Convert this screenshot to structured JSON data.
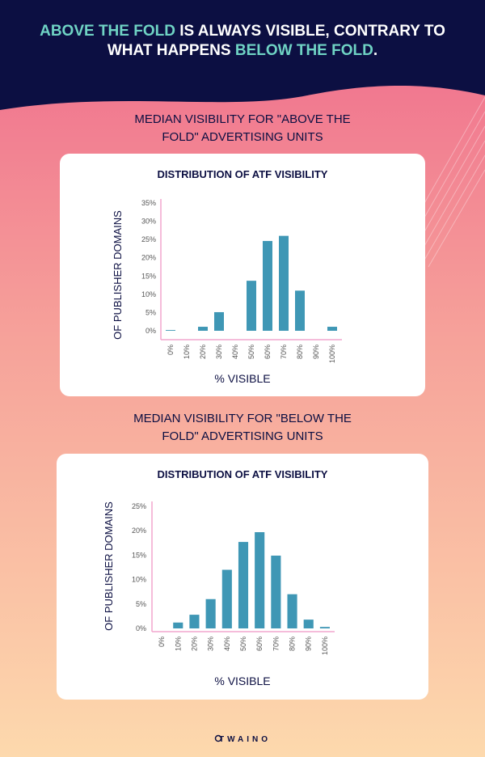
{
  "headline": [
    "ABOVE THE FOLD",
    " IS ALWAYS VISIBLE, CONTRARY TO",
    "WHAT HAPPENS ",
    "BELOW THE FOLD",
    "."
  ],
  "brand": "TWAINO",
  "chart_data": [
    {
      "type": "bar",
      "subtitle": [
        "MEDIAN VISIBILITY FOR \"ABOVE THE",
        "FOLD\" ADVERTISING UNITS"
      ],
      "title": "DISTRIBUTION OF ATF VISIBILITY",
      "x_label": "% VISIBLE",
      "y_label": "OF PUBLISHER DOMAINS",
      "categories": [
        "0%",
        "10%",
        "20%",
        "30%",
        "40%",
        "50%",
        "60%",
        "70%",
        "80%",
        "90%",
        "100%"
      ],
      "values": [
        0.2,
        0,
        1.1,
        5.1,
        0,
        13.7,
        24.6,
        26,
        11,
        0,
        1.1
      ],
      "color": "#3f97b5",
      "ylim": [
        0,
        35
      ],
      "yticks": [
        {
          "value": 0,
          "label": "0%"
        },
        {
          "value": 5,
          "label": "5%"
        },
        {
          "value": 10,
          "label": "10%"
        },
        {
          "value": 15,
          "label": "15%"
        },
        {
          "value": 20,
          "label": "20%"
        },
        {
          "value": 25,
          "label": "25%"
        },
        {
          "value": 30,
          "label": "30%"
        },
        {
          "value": 35,
          "label": "35%"
        }
      ]
    },
    {
      "type": "bar",
      "subtitle": [
        "MEDIAN VISIBILITY FOR \"BELOW THE",
        "FOLD\" ADVERTISING UNITS"
      ],
      "title": "DISTRIBUTION OF ATF VISIBILITY",
      "x_label": "% VISIBLE",
      "y_label": "OF PUBLISHER DOMAINS",
      "categories": [
        "0%",
        "10%",
        "20%",
        "30%",
        "40%",
        "50%",
        "60%",
        "70%",
        "80%",
        "90%",
        "100%"
      ],
      "values": [
        0,
        1.2,
        2.8,
        6,
        12,
        17.7,
        19.7,
        14.9,
        7,
        1.8,
        0.3
      ],
      "color": "#3f97b5",
      "ylim": [
        0,
        25
      ],
      "yticks": [
        {
          "value": 0,
          "label": "0%"
        },
        {
          "value": 5,
          "label": "5%"
        },
        {
          "value": 10,
          "label": "10%"
        },
        {
          "value": 15,
          "label": "15%"
        },
        {
          "value": 20,
          "label": "20%"
        },
        {
          "value": 25,
          "label": "25%"
        }
      ]
    }
  ]
}
